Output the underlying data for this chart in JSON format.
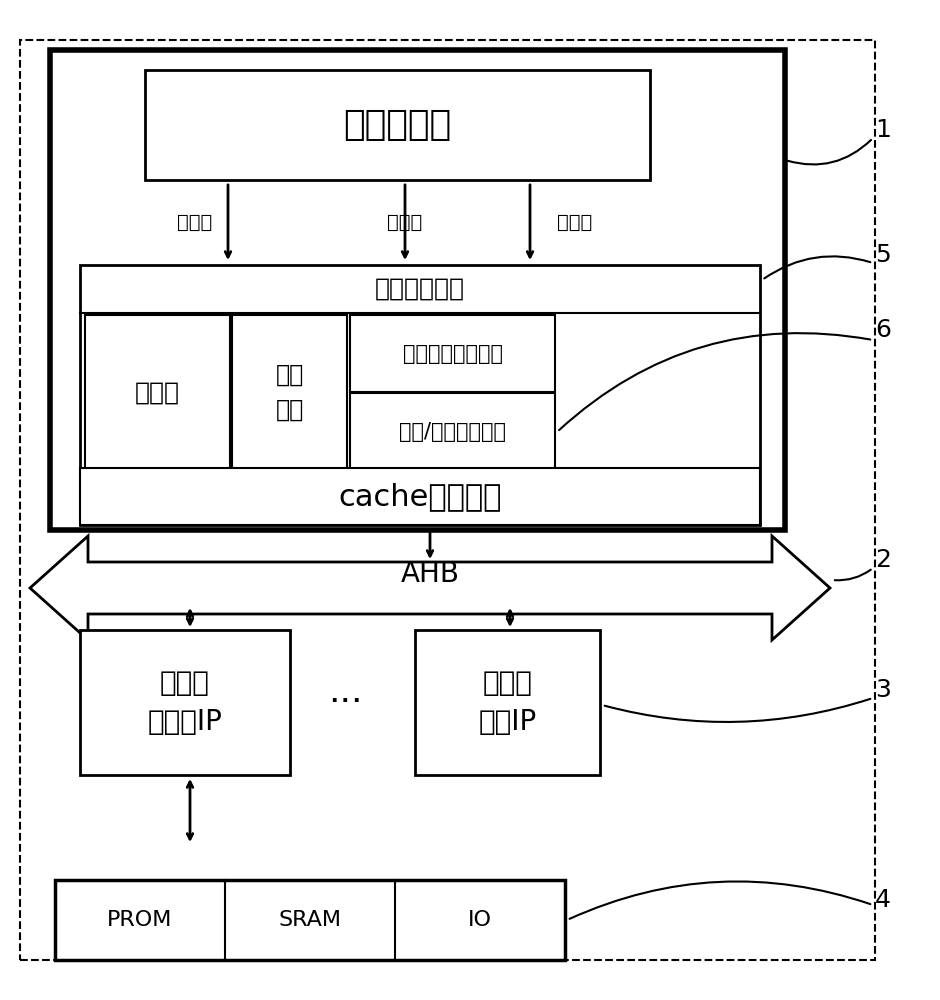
{
  "bg_color": "#ffffff",
  "instruction_pipeline_text": "指令流水线",
  "hit_logic_text": "命中判断逻辑",
  "write_buffer_text": "写缓冲",
  "update_policy_text": "更新\n策略",
  "access_width_text": "访问位宽判断单元",
  "bit_convert_text": "位宽/地址转换单元",
  "cache_bus_text": "cache总线接口",
  "ahb_text": "AHB",
  "mem_ctrl_text": "存储器\n控制器IP",
  "func_ip_text": "其它的\n功能IP",
  "prom_text": "PROM",
  "sram_text": "SRAM",
  "io_text": "IO",
  "write_op_text": "写操作",
  "read_op_text": "读操作",
  "read_data_text": "读数据",
  "label_1": "1",
  "label_2": "2",
  "label_3": "3",
  "label_4": "4",
  "label_5": "5",
  "label_6": "6"
}
